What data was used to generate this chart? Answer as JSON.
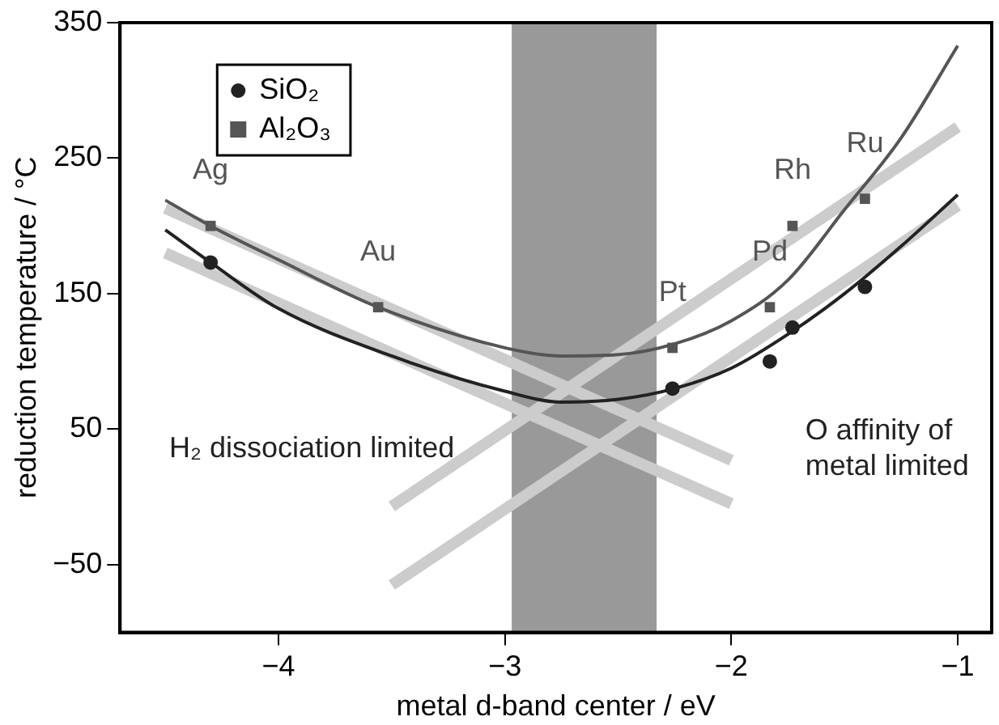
{
  "chart_data": {
    "type": "scatter",
    "xlabel": "metal d-band center / eV",
    "ylabel": "reduction temperature / °C",
    "xlim": [
      -4.7,
      -0.85
    ],
    "ylim": [
      -100,
      350
    ],
    "xticks": [
      {
        "value": -4,
        "label": "−4"
      },
      {
        "value": -3,
        "label": "−3"
      },
      {
        "value": -2,
        "label": "−2"
      },
      {
        "value": -1,
        "label": "−1"
      }
    ],
    "yticks": [
      {
        "value": -50,
        "label": "−50"
      },
      50,
      150,
      250,
      350
    ],
    "grid": false,
    "legend": "top left",
    "bands": [
      {
        "axis": "x",
        "from": -2.97,
        "to": -2.33,
        "color": "#999999"
      }
    ],
    "series": [
      {
        "type": "line",
        "color": "#cccccc",
        "marker": "none",
        "x": [
          -4.5,
          -2
        ],
        "values": [
          213,
          27
        ]
      },
      {
        "type": "line",
        "color": "#cccccc",
        "marker": "none",
        "x": [
          -4.5,
          -2
        ],
        "values": [
          180,
          -5
        ]
      },
      {
        "type": "line",
        "color": "#cccccc",
        "marker": "none",
        "x": [
          -3.5,
          -1
        ],
        "values": [
          -7,
          273
        ]
      },
      {
        "type": "line",
        "color": "#cccccc",
        "marker": "none",
        "x": [
          -3.5,
          -1
        ],
        "values": [
          -65,
          215
        ]
      },
      {
        "type": "line",
        "color": "#222222",
        "marker": "none",
        "x": [
          -4.5,
          -4.3,
          -4,
          -3.5,
          -3,
          -2.75,
          -2.5,
          -2.25,
          -2,
          -1.75,
          -1.5,
          -1.25,
          -1
        ],
        "values": [
          197,
          173,
          139,
          104,
          78,
          70,
          72,
          80,
          95,
          120,
          150,
          185,
          223
        ]
      },
      {
        "type": "line",
        "color": "#555555",
        "marker": "none",
        "x": [
          -4.5,
          -4.3,
          -4,
          -3.56,
          -3,
          -2.75,
          -2.5,
          -2.25,
          -2,
          -1.75,
          -1.5,
          -1.25,
          -1
        ],
        "values": [
          219,
          200,
          175,
          140,
          110,
          104,
          105,
          113,
          130,
          160,
          212,
          265,
          333
        ]
      },
      {
        "name": "SiO₂",
        "type": "scatter",
        "color": "#222222",
        "marker": "circle",
        "x": [
          -4.3,
          -2.26,
          -1.83,
          -1.73,
          -1.41
        ],
        "values": [
          173,
          80,
          100,
          125,
          155
        ]
      },
      {
        "name": "Al₂O₃",
        "type": "scatter",
        "color": "#555555",
        "marker": "square",
        "x": [
          -4.3,
          -3.56,
          -2.26,
          -1.83,
          -1.73,
          -1.41
        ],
        "values": [
          200,
          140,
          110,
          140,
          200,
          220
        ]
      }
    ],
    "annotations": [
      {
        "text": "Ag",
        "x": -4.3,
        "y": 200
      },
      {
        "text": "Au",
        "x": -3.56,
        "y": 140
      },
      {
        "text": "Pt",
        "x": -2.26,
        "y": 110
      },
      {
        "text": "Pd",
        "x": -1.83,
        "y": 140
      },
      {
        "text": "Rh",
        "x": -1.73,
        "y": 200
      },
      {
        "text": "Ru",
        "x": -1.41,
        "y": 220
      },
      "H₂ dissociation limited",
      "O affinity of\nmetal limited"
    ]
  }
}
